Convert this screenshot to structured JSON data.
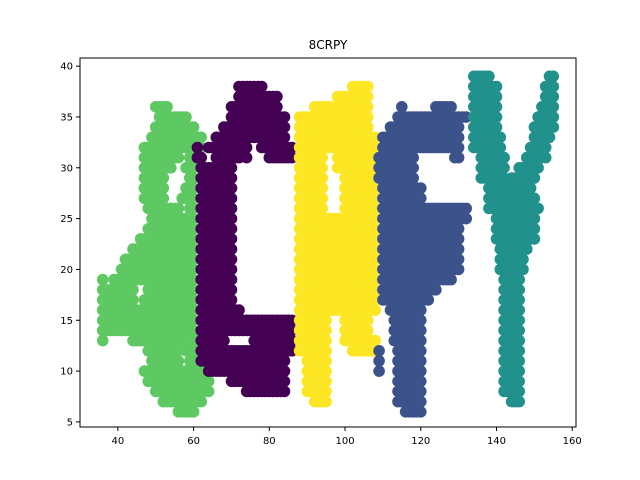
{
  "chart_data": {
    "type": "scatter",
    "title": "8CRPY",
    "xlabel": "",
    "ylabel": "",
    "xlim": [
      30,
      161
    ],
    "ylim": [
      4.5,
      40.8
    ],
    "xticks": [
      40,
      60,
      80,
      100,
      120,
      140,
      160
    ],
    "yticks": [
      5,
      10,
      15,
      20,
      25,
      30,
      35,
      40
    ],
    "grid": false,
    "legend": "none",
    "marker_step": 1,
    "series": [
      {
        "color": "#5ec962",
        "runs": [
          [
            6,
            56,
            60
          ],
          [
            7,
            52,
            62
          ],
          [
            8,
            50,
            64
          ],
          [
            9,
            48,
            64
          ],
          [
            10,
            47,
            64
          ],
          [
            11,
            49,
            56
          ],
          [
            11,
            59,
            62
          ],
          [
            12,
            48,
            56
          ],
          [
            12,
            58,
            62
          ],
          [
            13,
            36,
            36
          ],
          [
            13,
            44,
            58
          ],
          [
            13,
            60,
            62
          ],
          [
            14,
            36,
            60
          ],
          [
            15,
            36,
            60
          ],
          [
            16,
            36,
            60
          ],
          [
            17,
            36,
            44
          ],
          [
            17,
            47,
            60
          ],
          [
            18,
            36,
            44
          ],
          [
            18,
            48,
            60
          ],
          [
            19,
            36,
            36
          ],
          [
            19,
            39,
            60
          ],
          [
            20,
            41,
            60
          ],
          [
            21,
            42,
            60
          ],
          [
            22,
            44,
            60
          ],
          [
            23,
            46,
            60
          ],
          [
            24,
            48,
            60
          ],
          [
            25,
            49,
            60
          ],
          [
            26,
            48,
            56
          ],
          [
            26,
            59,
            60
          ],
          [
            27,
            47,
            52
          ],
          [
            27,
            57,
            60
          ],
          [
            28,
            47,
            52
          ],
          [
            28,
            58,
            60
          ],
          [
            29,
            47,
            52
          ],
          [
            29,
            59,
            60
          ],
          [
            30,
            47,
            54
          ],
          [
            30,
            58,
            60
          ],
          [
            31,
            47,
            56
          ],
          [
            31,
            59,
            60
          ],
          [
            32,
            47,
            62
          ],
          [
            33,
            49,
            62
          ],
          [
            34,
            50,
            60
          ],
          [
            35,
            51,
            58
          ],
          [
            36,
            50,
            53
          ]
        ]
      },
      {
        "color": "#440154",
        "runs": [
          [
            8,
            74,
            84
          ],
          [
            9,
            70,
            84
          ],
          [
            10,
            64,
            84
          ],
          [
            11,
            62,
            84
          ],
          [
            12,
            62,
            86
          ],
          [
            13,
            62,
            68
          ],
          [
            13,
            76,
            86
          ],
          [
            14,
            62,
            86
          ],
          [
            15,
            62,
            86
          ],
          [
            16,
            62,
            72
          ],
          [
            17,
            62,
            70
          ],
          [
            18,
            62,
            70
          ],
          [
            19,
            62,
            70
          ],
          [
            20,
            62,
            70
          ],
          [
            21,
            62,
            70
          ],
          [
            22,
            62,
            70
          ],
          [
            23,
            62,
            70
          ],
          [
            24,
            62,
            70
          ],
          [
            25,
            62,
            70
          ],
          [
            26,
            62,
            70
          ],
          [
            27,
            62,
            70
          ],
          [
            28,
            62,
            70
          ],
          [
            29,
            62,
            70
          ],
          [
            30,
            62,
            70
          ],
          [
            31,
            61,
            62
          ],
          [
            31,
            66,
            72
          ],
          [
            31,
            74,
            74
          ],
          [
            31,
            80,
            86
          ],
          [
            32,
            61,
            61
          ],
          [
            32,
            64,
            74
          ],
          [
            32,
            78,
            86
          ],
          [
            33,
            66,
            84
          ],
          [
            34,
            68,
            84
          ],
          [
            35,
            70,
            84
          ],
          [
            36,
            70,
            82
          ],
          [
            37,
            72,
            82
          ],
          [
            38,
            72,
            78
          ]
        ]
      },
      {
        "color": "#fde725",
        "runs": [
          [
            7,
            92,
            95
          ],
          [
            8,
            90,
            95
          ],
          [
            9,
            90,
            95
          ],
          [
            10,
            90,
            95
          ],
          [
            11,
            90,
            95
          ],
          [
            12,
            88,
            95
          ],
          [
            12,
            102,
            108
          ],
          [
            13,
            88,
            95
          ],
          [
            13,
            100,
            108
          ],
          [
            14,
            88,
            95
          ],
          [
            14,
            100,
            106
          ],
          [
            15,
            88,
            95
          ],
          [
            15,
            100,
            106
          ],
          [
            16,
            88,
            108
          ],
          [
            17,
            88,
            108
          ],
          [
            18,
            88,
            108
          ],
          [
            19,
            88,
            108
          ],
          [
            20,
            88,
            108
          ],
          [
            21,
            88,
            108
          ],
          [
            22,
            88,
            108
          ],
          [
            23,
            88,
            108
          ],
          [
            24,
            88,
            108
          ],
          [
            25,
            88,
            108
          ],
          [
            26,
            88,
            94
          ],
          [
            26,
            100,
            108
          ],
          [
            27,
            88,
            94
          ],
          [
            27,
            100,
            108
          ],
          [
            28,
            88,
            94
          ],
          [
            28,
            100,
            108
          ],
          [
            29,
            88,
            94
          ],
          [
            29,
            100,
            108
          ],
          [
            30,
            88,
            94
          ],
          [
            30,
            98,
            108
          ],
          [
            31,
            88,
            94
          ],
          [
            31,
            98,
            108
          ],
          [
            32,
            88,
            108
          ],
          [
            33,
            88,
            108
          ],
          [
            34,
            88,
            106
          ],
          [
            35,
            88,
            106
          ],
          [
            36,
            92,
            106
          ],
          [
            37,
            98,
            106
          ],
          [
            38,
            102,
            106
          ]
        ]
      },
      {
        "color": "#3b528b",
        "runs": [
          [
            6,
            116,
            120
          ],
          [
            7,
            114,
            120
          ],
          [
            8,
            114,
            120
          ],
          [
            9,
            114,
            120
          ],
          [
            10,
            109,
            109
          ],
          [
            10,
            114,
            120
          ],
          [
            11,
            109,
            109
          ],
          [
            11,
            114,
            120
          ],
          [
            12,
            109,
            109
          ],
          [
            12,
            114,
            120
          ],
          [
            13,
            113,
            120
          ],
          [
            14,
            113,
            120
          ],
          [
            15,
            113,
            120
          ],
          [
            16,
            112,
            120
          ],
          [
            17,
            110,
            122
          ],
          [
            18,
            110,
            124
          ],
          [
            19,
            110,
            128
          ],
          [
            20,
            110,
            130
          ],
          [
            21,
            110,
            130
          ],
          [
            22,
            110,
            130
          ],
          [
            23,
            110,
            130
          ],
          [
            24,
            110,
            130
          ],
          [
            25,
            110,
            132
          ],
          [
            26,
            110,
            132
          ],
          [
            27,
            110,
            120
          ],
          [
            28,
            110,
            120
          ],
          [
            29,
            109,
            118
          ],
          [
            30,
            109,
            118
          ],
          [
            31,
            109,
            118
          ],
          [
            31,
            129,
            130
          ],
          [
            32,
            110,
            130
          ],
          [
            33,
            110,
            130
          ],
          [
            34,
            112,
            130
          ],
          [
            35,
            114,
            132
          ],
          [
            36,
            115,
            115
          ],
          [
            36,
            124,
            128
          ]
        ]
      },
      {
        "color": "#21918c",
        "runs": [
          [
            7,
            144,
            146
          ],
          [
            8,
            142,
            146
          ],
          [
            9,
            142,
            146
          ],
          [
            10,
            142,
            146
          ],
          [
            11,
            142,
            146
          ],
          [
            12,
            142,
            146
          ],
          [
            13,
            142,
            146
          ],
          [
            14,
            142,
            146
          ],
          [
            15,
            142,
            146
          ],
          [
            16,
            142,
            146
          ],
          [
            17,
            142,
            146
          ],
          [
            18,
            142,
            146
          ],
          [
            19,
            142,
            146
          ],
          [
            20,
            141,
            147
          ],
          [
            21,
            141,
            147
          ],
          [
            22,
            141,
            148
          ],
          [
            23,
            140,
            150
          ],
          [
            24,
            140,
            150
          ],
          [
            25,
            140,
            150
          ],
          [
            26,
            138,
            151
          ],
          [
            27,
            138,
            150
          ],
          [
            28,
            138,
            149
          ],
          [
            29,
            136,
            142
          ],
          [
            29,
            144,
            150
          ],
          [
            30,
            136,
            142
          ],
          [
            30,
            146,
            151
          ],
          [
            31,
            136,
            142
          ],
          [
            31,
            148,
            153
          ],
          [
            32,
            134,
            141
          ],
          [
            32,
            149,
            153
          ],
          [
            33,
            134,
            141
          ],
          [
            33,
            150,
            154
          ],
          [
            34,
            134,
            140
          ],
          [
            34,
            150,
            155
          ],
          [
            35,
            134,
            140
          ],
          [
            35,
            151,
            155
          ],
          [
            36,
            134,
            140
          ],
          [
            36,
            152,
            155
          ],
          [
            37,
            134,
            140
          ],
          [
            37,
            153,
            155
          ],
          [
            38,
            134,
            140
          ],
          [
            38,
            153,
            155
          ],
          [
            39,
            134,
            138
          ],
          [
            39,
            154,
            155
          ]
        ]
      }
    ]
  }
}
